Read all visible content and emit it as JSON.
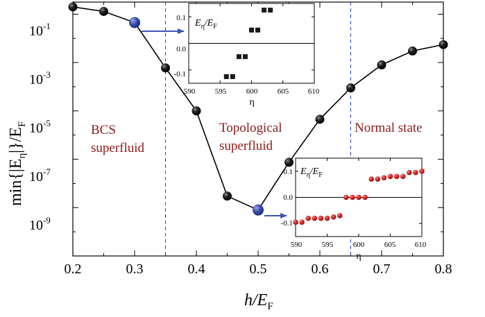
{
  "chart_data": {
    "type": "line",
    "title": "",
    "xlabel": {
      "base": "h/E",
      "sub": "F"
    },
    "ylabel": {
      "pre": "min{|E",
      "sub1": "η",
      "mid": "|}/E",
      "sub2": "F"
    },
    "xlim": [
      0.2,
      0.8
    ],
    "ylim_log10": [
      -11,
      -0.5
    ],
    "yscale": "log",
    "x_tick_labels": [
      "0.2",
      "0.3",
      "0.4",
      "0.5",
      "0.6",
      "0.7",
      "0.8"
    ],
    "y_tick_labels": [
      {
        "base": "10",
        "exp": "-1"
      },
      {
        "base": "10",
        "exp": "-3"
      },
      {
        "base": "10",
        "exp": "-5"
      },
      {
        "base": "10",
        "exp": "-7"
      },
      {
        "base": "10",
        "exp": "-9"
      }
    ],
    "series": [
      {
        "x": [
          0.2,
          0.25,
          0.3,
          0.35,
          0.4,
          0.45,
          0.5,
          0.55,
          0.6,
          0.65,
          0.7,
          0.75,
          0.8
        ],
        "y": [
          0.2,
          0.13,
          0.045,
          0.0006,
          1e-05,
          3e-09,
          8e-10,
          7.5e-08,
          4.5e-06,
          9e-05,
          0.0008,
          0.003,
          0.0055
        ]
      }
    ],
    "highlighted_x": [
      0.3,
      0.5
    ],
    "dashed_lines_x": [
      0.35,
      0.65
    ],
    "regions": [
      {
        "line1": "BCS",
        "line2": "superfluid"
      },
      {
        "line1": "Topological",
        "line2": "superfluid"
      },
      {
        "line1": "Normal state",
        "line2": ""
      }
    ],
    "insets": [
      {
        "type": "scatter",
        "marker": "square",
        "ylabel": {
          "base1": "E",
          "sub1": "η",
          "mid": "/E",
          "sub2": "F"
        },
        "xlabel": "η",
        "xlim": [
          590,
          610
        ],
        "ylim": [
          -0.15,
          0.15
        ],
        "x_tick_labels": [
          "590",
          "595",
          "600",
          "605",
          "610"
        ],
        "y_tick_labels": [
          "0.1",
          "0.0",
          "-0.1"
        ],
        "x": [
          596,
          597,
          598,
          599,
          600,
          601,
          602,
          603
        ],
        "y": [
          -0.125,
          -0.125,
          -0.05,
          -0.05,
          0.05,
          0.05,
          0.125,
          0.125
        ]
      },
      {
        "type": "scatter",
        "marker": "circle",
        "ylabel": {
          "base1": "E",
          "sub1": "η",
          "mid": "/E",
          "sub2": "F"
        },
        "xlabel": "η",
        "xlim": [
          590,
          610
        ],
        "ylim": [
          -0.15,
          0.15
        ],
        "x_tick_labels": [
          "590",
          "595",
          "600",
          "605",
          "610"
        ],
        "y_tick_labels": [
          "0.1",
          "0.0",
          "-0.1"
        ],
        "x": [
          590,
          591,
          592,
          593,
          594,
          595,
          596,
          597,
          598,
          599,
          600,
          601,
          602,
          603,
          604,
          605,
          606,
          607,
          608,
          609,
          610
        ],
        "y": [
          -0.095,
          -0.095,
          -0.08,
          -0.08,
          -0.08,
          -0.08,
          -0.075,
          -0.07,
          0,
          0,
          0,
          0,
          0.07,
          0.07,
          0.075,
          0.08,
          0.08,
          0.08,
          0.095,
          0.095,
          0.1
        ]
      }
    ],
    "colors": {
      "line": "#000000",
      "marker": "#111111",
      "highlight": "#3b4fb0",
      "arrow": "#3b55b5",
      "dashed": "#2b45b8",
      "region_text": "#8b1a1a",
      "inset1_marker": "#1a1a1a",
      "inset2_marker": "#d42a2a"
    }
  }
}
